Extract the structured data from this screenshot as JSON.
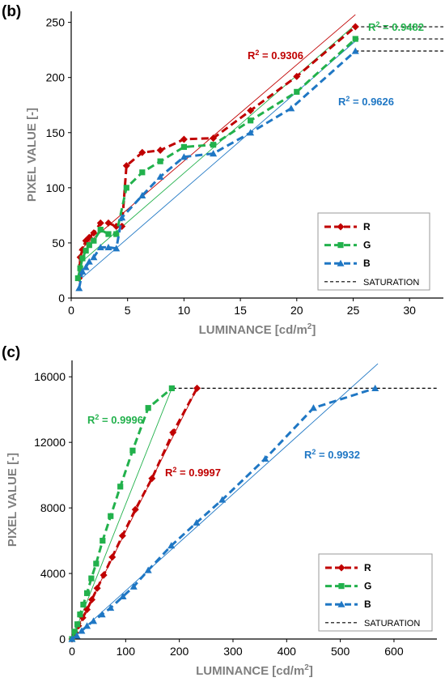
{
  "panels": {
    "b": {
      "label": "(b)"
    },
    "c": {
      "label": "(c)"
    }
  },
  "colors": {
    "R": "#c00000",
    "G": "#22b14c",
    "B": "#1f77c4",
    "saturation": "#000000"
  },
  "chart_data": [
    {
      "type": "line",
      "panel": "(b)",
      "xlabel": "LUMINANCE [cd/m²]",
      "ylabel": "PIXEL VALUE [-]",
      "xlim": [
        0,
        33
      ],
      "ylim": [
        0,
        260
      ],
      "xticks": [
        "0",
        "5",
        "10",
        "15",
        "20",
        "25",
        "30"
      ],
      "yticks": [
        "0",
        "50",
        "100",
        "150",
        "200",
        "250"
      ],
      "legend": [
        "R",
        "G",
        "B",
        "SATURATION"
      ],
      "legend_position": "bottom-right",
      "series": [
        {
          "name": "R",
          "marker": "diamond",
          "r2": "R² = 0.9306",
          "x": [
            0.7,
            0.8,
            1.0,
            1.3,
            1.6,
            2.0,
            2.6,
            3.3,
            4.0,
            4.5,
            4.9,
            6.3,
            7.9,
            10.0,
            12.6,
            15.9,
            20.0,
            25.2
          ],
          "y": [
            18,
            37,
            44,
            52,
            55,
            59,
            68,
            68,
            65,
            65,
            120,
            132,
            134,
            144,
            145,
            170,
            201,
            246
          ],
          "fit": [
            [
              0.7,
              43
            ],
            [
              25.2,
              257
            ]
          ]
        },
        {
          "name": "G",
          "marker": "square",
          "r2": "R² = 0.9482",
          "x": [
            0.6,
            0.8,
            1.0,
            1.3,
            1.6,
            2.0,
            2.6,
            3.3,
            4.0,
            4.9,
            6.3,
            7.9,
            10.0,
            12.6,
            15.9,
            20.0,
            25.2
          ],
          "y": [
            18,
            27,
            36,
            43,
            48,
            52,
            62,
            58,
            58,
            100,
            114,
            124,
            137,
            139,
            161,
            187,
            235
          ],
          "fit": [
            [
              0.6,
              30
            ],
            [
              25.2,
              248
            ]
          ]
        },
        {
          "name": "B",
          "marker": "triangle",
          "r2": "R² = 0.9626",
          "x": [
            0.7,
            1.0,
            1.3,
            1.6,
            2.0,
            2.6,
            3.3,
            4.0,
            4.5,
            6.3,
            7.9,
            10.0,
            12.6,
            15.9,
            19.5,
            25.2
          ],
          "y": [
            9,
            24,
            28,
            33,
            37,
            46,
            46,
            45,
            73,
            93,
            110,
            128,
            131,
            150,
            172,
            224
          ],
          "fit": [
            [
              0.7,
              16
            ],
            [
              25.2,
              233
            ]
          ]
        }
      ],
      "saturation_y": [
        246,
        235,
        224
      ]
    },
    {
      "type": "line",
      "panel": "(c)",
      "xlabel": "LUMINANCE [cd/m²]",
      "ylabel": "PIXEL VALUE [-]",
      "xlim": [
        0,
        680
      ],
      "ylim": [
        0,
        17000
      ],
      "xticks": [
        "0",
        "100",
        "200",
        "300",
        "400",
        "500",
        "600"
      ],
      "yticks": [
        "0",
        "4000",
        "8000",
        "12000",
        "16000"
      ],
      "legend": [
        "R",
        "G",
        "B",
        "SATURATION"
      ],
      "legend_position": "bottom-right",
      "series": [
        {
          "name": "R",
          "marker": "diamond",
          "r2": "R² = 0.9997",
          "x": [
            0,
            6,
            12,
            20,
            28,
            37,
            47,
            59,
            75,
            94,
            118,
            149,
            188,
            233
          ],
          "y": [
            0,
            400,
            800,
            1300,
            1800,
            2400,
            3100,
            3900,
            5000,
            6300,
            7900,
            9800,
            12600,
            15300
          ]
        },
        {
          "name": "G",
          "marker": "square",
          "r2": "R² = 0.9996",
          "x": [
            0,
            5,
            10,
            15,
            21,
            28,
            36,
            45,
            57,
            72,
            90,
            113,
            142,
            186
          ],
          "y": [
            0,
            450,
            900,
            1500,
            2100,
            2800,
            3700,
            4600,
            6000,
            7500,
            9300,
            11500,
            14100,
            15300
          ]
        },
        {
          "name": "B",
          "marker": "triangle",
          "r2": "R² = 0.9932",
          "x": [
            0,
            9,
            18,
            28,
            40,
            56,
            72,
            95,
            115,
            142,
            185,
            232,
            280,
            360,
            450,
            565
          ],
          "y": [
            0,
            200,
            500,
            800,
            1100,
            1500,
            1900,
            2600,
            3200,
            4200,
            5700,
            7100,
            8500,
            11000,
            14100,
            15300
          ]
        }
      ],
      "fit_lines": [
        [
          0,
          0
        ],
        [
          570,
          16800
        ]
      ],
      "saturation_y": 15300,
      "saturation_x": [
        188,
        680
      ]
    }
  ]
}
